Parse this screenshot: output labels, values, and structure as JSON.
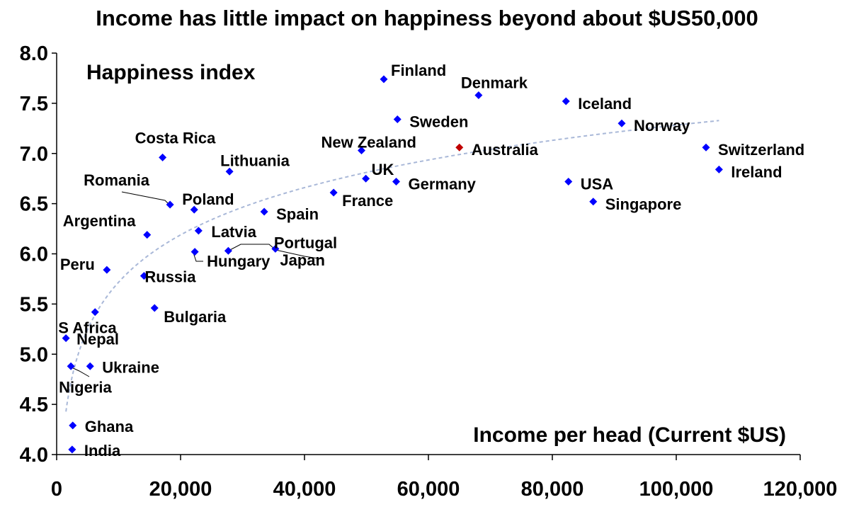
{
  "chart_data": {
    "type": "scatter",
    "title": "Income has little impact on happiness beyond about $US50,000",
    "xlabel": "Income per head (Current $US)",
    "ylabel": "Happiness index",
    "xlim": [
      0,
      120000
    ],
    "ylim": [
      4.0,
      8.0
    ],
    "x_ticks": [
      "0",
      "20,000",
      "40,000",
      "60,000",
      "80,000",
      "100,000",
      "120,000"
    ],
    "y_ticks": [
      "4.0",
      "4.5",
      "5.0",
      "5.5",
      "6.0",
      "6.5",
      "7.0",
      "7.5",
      "8.0"
    ],
    "grid": false,
    "trendline": "logarithmic",
    "colors": {
      "points": "#0000ff",
      "highlight": "#c00000",
      "trendline": "#a9b8d8"
    },
    "points": [
      {
        "name": "Finland",
        "x": 52800,
        "y": 7.74
      },
      {
        "name": "Denmark",
        "x": 68100,
        "y": 7.58
      },
      {
        "name": "Iceland",
        "x": 82200,
        "y": 7.52
      },
      {
        "name": "Sweden",
        "x": 55000,
        "y": 7.34
      },
      {
        "name": "Norway",
        "x": 91200,
        "y": 7.3
      },
      {
        "name": "New Zealand",
        "x": 49200,
        "y": 7.03
      },
      {
        "name": "Australia",
        "x": 65000,
        "y": 7.06,
        "highlight": true
      },
      {
        "name": "Switzerland",
        "x": 104800,
        "y": 7.06
      },
      {
        "name": "Ireland",
        "x": 106900,
        "y": 6.84
      },
      {
        "name": "Costa Rica",
        "x": 17100,
        "y": 6.96
      },
      {
        "name": "Lithuania",
        "x": 27900,
        "y": 6.82
      },
      {
        "name": "UK",
        "x": 49900,
        "y": 6.75
      },
      {
        "name": "Germany",
        "x": 54800,
        "y": 6.72
      },
      {
        "name": "USA",
        "x": 82600,
        "y": 6.72
      },
      {
        "name": "France",
        "x": 44700,
        "y": 6.61
      },
      {
        "name": "Singapore",
        "x": 86600,
        "y": 6.52
      },
      {
        "name": "Romania",
        "x": 18300,
        "y": 6.49
      },
      {
        "name": "Poland",
        "x": 22200,
        "y": 6.44
      },
      {
        "name": "Spain",
        "x": 33500,
        "y": 6.42
      },
      {
        "name": "Latvia",
        "x": 22900,
        "y": 6.23
      },
      {
        "name": "Argentina",
        "x": 14600,
        "y": 6.19
      },
      {
        "name": "Portugal",
        "x": 35300,
        "y": 6.05
      },
      {
        "name": "Hungary",
        "x": 22300,
        "y": 6.02
      },
      {
        "name": "Japan",
        "x": 27700,
        "y": 6.03
      },
      {
        "name": "Peru",
        "x": 8100,
        "y": 5.84
      },
      {
        "name": "Russia",
        "x": 14100,
        "y": 5.78
      },
      {
        "name": "Bulgaria",
        "x": 15800,
        "y": 5.46
      },
      {
        "name": "S Africa",
        "x": 6200,
        "y": 5.42
      },
      {
        "name": "Nepal",
        "x": 1500,
        "y": 5.16
      },
      {
        "name": "Nigeria",
        "x": 2300,
        "y": 4.88
      },
      {
        "name": "Ukraine",
        "x": 5400,
        "y": 4.88
      },
      {
        "name": "Ghana",
        "x": 2600,
        "y": 4.29
      },
      {
        "name": "India",
        "x": 2500,
        "y": 4.05
      }
    ]
  }
}
